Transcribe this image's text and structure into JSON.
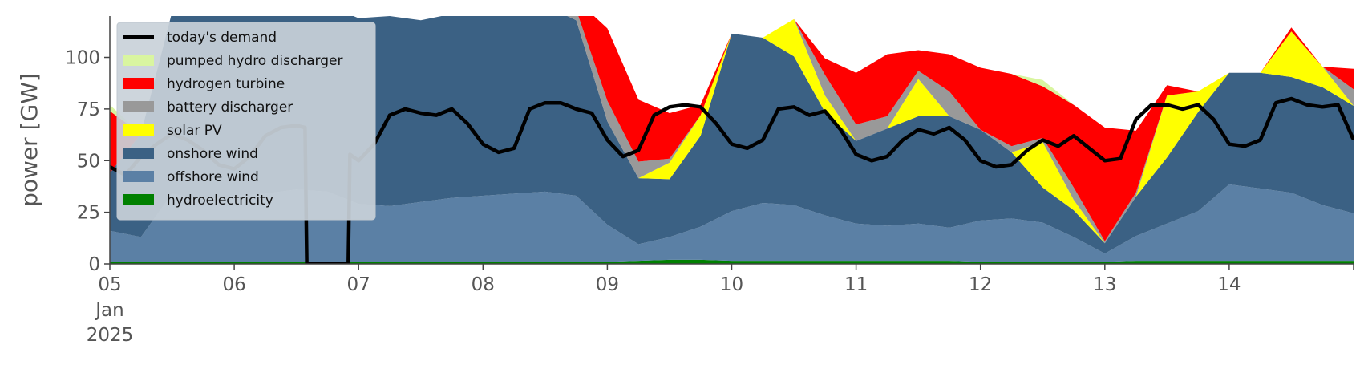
{
  "chart_data": {
    "type": "area",
    "stacked": true,
    "ylabel": "power [GW]",
    "ylim": [
      0,
      120
    ],
    "xlim": [
      "2025-01-05T00:00",
      "2025-01-15T00:00"
    ],
    "x_ticks": [
      {
        "date": "2025-01-05",
        "label": "05",
        "sub1": "Jan",
        "sub2": "2025"
      },
      {
        "date": "2025-01-06",
        "label": "06"
      },
      {
        "date": "2025-01-07",
        "label": "07"
      },
      {
        "date": "2025-01-08",
        "label": "08"
      },
      {
        "date": "2025-01-09",
        "label": "09"
      },
      {
        "date": "2025-01-10",
        "label": "10"
      },
      {
        "date": "2025-01-11",
        "label": "11"
      },
      {
        "date": "2025-01-12",
        "label": "12"
      },
      {
        "date": "2025-01-13",
        "label": "13"
      },
      {
        "date": "2025-01-14",
        "label": "14"
      }
    ],
    "y_ticks": [
      0,
      25,
      50,
      75,
      100
    ],
    "grid": false,
    "legend_position": "top-left",
    "x": [
      "2025-01-05T00:00",
      "2025-01-05T06:00",
      "2025-01-05T12:00",
      "2025-01-05T18:00",
      "2025-01-06T00:00",
      "2025-01-06T06:00",
      "2025-01-06T12:00",
      "2025-01-06T18:00",
      "2025-01-07T00:00",
      "2025-01-07T06:00",
      "2025-01-07T12:00",
      "2025-01-07T18:00",
      "2025-01-08T00:00",
      "2025-01-08T06:00",
      "2025-01-08T12:00",
      "2025-01-08T18:00",
      "2025-01-09T00:00",
      "2025-01-09T06:00",
      "2025-01-09T12:00",
      "2025-01-09T18:00",
      "2025-01-10T00:00",
      "2025-01-10T06:00",
      "2025-01-10T12:00",
      "2025-01-10T18:00",
      "2025-01-11T00:00",
      "2025-01-11T06:00",
      "2025-01-11T12:00",
      "2025-01-11T18:00",
      "2025-01-12T00:00",
      "2025-01-12T06:00",
      "2025-01-12T12:00",
      "2025-01-12T18:00",
      "2025-01-13T00:00",
      "2025-01-13T06:00",
      "2025-01-13T12:00",
      "2025-01-13T18:00",
      "2025-01-14T00:00",
      "2025-01-14T06:00",
      "2025-01-14T12:00",
      "2025-01-14T18:00",
      "2025-01-15T00:00"
    ],
    "series": [
      {
        "name": "hydroelectricity",
        "color": "#008000",
        "values": [
          1,
          1,
          1,
          1,
          1,
          1,
          1,
          1,
          1,
          1,
          1,
          1,
          1,
          1,
          1,
          1,
          1,
          1.5,
          2,
          2,
          1.5,
          1.5,
          1.5,
          1.5,
          1.5,
          1.5,
          1.5,
          1.5,
          1,
          1,
          1,
          1,
          1,
          1.5,
          1.5,
          1.5,
          1.5,
          1.5,
          1.5,
          1.5,
          1.5
        ]
      },
      {
        "name": "offshore wind",
        "color": "#5b80a5",
        "values": [
          15,
          12,
          33,
          30,
          32,
          33,
          35,
          34,
          28,
          27,
          29,
          31,
          32,
          33,
          34,
          32,
          18,
          8,
          11,
          16,
          24,
          28,
          27,
          22,
          18,
          17,
          18,
          16,
          20,
          21,
          19,
          12,
          4,
          12,
          18,
          24,
          37,
          35,
          33,
          27,
          23
        ]
      },
      {
        "name": "onshore wind",
        "color": "#3b6184",
        "values": [
          28,
          50,
          88,
          90,
          90,
          90,
          90,
          90,
          90,
          92,
          88,
          89,
          90,
          90,
          90,
          85,
          50,
          32,
          28,
          44,
          86,
          80,
          72,
          50,
          40,
          47,
          52,
          54,
          44,
          32,
          17,
          13,
          5,
          19,
          32,
          48,
          54,
          56,
          56,
          57,
          52
        ]
      },
      {
        "name": "solar PV",
        "color": "#ffff00",
        "values": [
          0,
          0,
          0,
          0,
          0,
          0,
          0,
          0,
          0,
          0,
          0,
          0,
          0,
          0,
          0,
          0,
          0,
          0,
          8,
          10,
          0,
          0,
          18,
          8,
          0,
          0,
          18,
          0,
          0,
          0,
          22,
          5,
          0,
          0,
          30,
          10,
          0,
          0,
          22,
          10,
          0
        ]
      },
      {
        "name": "battery discharger",
        "color": "#999999",
        "values": [
          0,
          0,
          0,
          0,
          0,
          0,
          0,
          0,
          0,
          0,
          0,
          0,
          0,
          0,
          0,
          5,
          10,
          8,
          2,
          0,
          0,
          0,
          0,
          10,
          8,
          6,
          4,
          12,
          0,
          3,
          2,
          6,
          1,
          2,
          0,
          0,
          0,
          0,
          0,
          0,
          8
        ]
      },
      {
        "name": "hydrogen turbine",
        "color": "#ff0000",
        "values": [
          30,
          0,
          0,
          0,
          0,
          0,
          0,
          0,
          0,
          0,
          0,
          0,
          0,
          0,
          0,
          5,
          35,
          30,
          22,
          5,
          0,
          0,
          0,
          8,
          25,
          30,
          10,
          18,
          30,
          35,
          25,
          40,
          55,
          30,
          5,
          0,
          0,
          0,
          2,
          0,
          10
        ]
      },
      {
        "name": "pumped hydro discharger",
        "color": "#d9f5a0",
        "values": [
          3,
          0,
          0,
          0,
          0,
          0,
          0,
          0,
          0,
          0,
          0,
          0,
          0,
          0,
          0,
          0,
          0,
          0,
          0,
          0,
          0,
          0,
          0,
          0,
          0,
          0,
          0,
          0,
          0,
          0,
          3,
          0,
          0,
          0,
          0,
          0,
          0,
          0,
          0,
          0,
          0
        ]
      }
    ],
    "demand": {
      "name": "today's demand",
      "color": "#000000",
      "x": [
        "2025-01-05T00:00",
        "2025-01-05T03:00",
        "2025-01-05T06:00",
        "2025-01-05T09:00",
        "2025-01-05T12:00",
        "2025-01-05T15:00",
        "2025-01-05T18:00",
        "2025-01-05T21:00",
        "2025-01-06T00:00",
        "2025-01-06T03:00",
        "2025-01-06T06:00",
        "2025-01-06T09:00",
        "2025-01-06T12:00",
        "2025-01-06T13:40",
        "2025-01-06T14:00",
        "2025-01-06T18:00",
        "2025-01-06T22:00",
        "2025-01-06T22:20",
        "2025-01-07T00:00",
        "2025-01-07T03:00",
        "2025-01-07T06:00",
        "2025-01-07T09:00",
        "2025-01-07T12:00",
        "2025-01-07T15:00",
        "2025-01-07T18:00",
        "2025-01-07T21:00",
        "2025-01-08T00:00",
        "2025-01-08T03:00",
        "2025-01-08T06:00",
        "2025-01-08T09:00",
        "2025-01-08T12:00",
        "2025-01-08T15:00",
        "2025-01-08T18:00",
        "2025-01-08T21:00",
        "2025-01-09T00:00",
        "2025-01-09T03:00",
        "2025-01-09T06:00",
        "2025-01-09T09:00",
        "2025-01-09T12:00",
        "2025-01-09T15:00",
        "2025-01-09T18:00",
        "2025-01-09T21:00",
        "2025-01-10T00:00",
        "2025-01-10T03:00",
        "2025-01-10T06:00",
        "2025-01-10T09:00",
        "2025-01-10T12:00",
        "2025-01-10T15:00",
        "2025-01-10T18:00",
        "2025-01-10T21:00",
        "2025-01-11T00:00",
        "2025-01-11T03:00",
        "2025-01-11T06:00",
        "2025-01-11T09:00",
        "2025-01-11T12:00",
        "2025-01-11T15:00",
        "2025-01-11T18:00",
        "2025-01-11T21:00",
        "2025-01-12T00:00",
        "2025-01-12T03:00",
        "2025-01-12T06:00",
        "2025-01-12T09:00",
        "2025-01-12T12:00",
        "2025-01-12T15:00",
        "2025-01-12T18:00",
        "2025-01-12T21:00",
        "2025-01-13T00:00",
        "2025-01-13T03:00",
        "2025-01-13T06:00",
        "2025-01-13T09:00",
        "2025-01-13T12:00",
        "2025-01-13T15:00",
        "2025-01-13T18:00",
        "2025-01-13T21:00",
        "2025-01-14T00:00",
        "2025-01-14T03:00",
        "2025-01-14T06:00",
        "2025-01-14T09:00",
        "2025-01-14T12:00",
        "2025-01-14T15:00",
        "2025-01-14T18:00",
        "2025-01-14T21:00",
        "2025-01-14T23:50"
      ],
      "values": [
        47,
        43,
        52,
        58,
        63,
        60,
        55,
        48,
        46,
        52,
        62,
        66,
        67,
        66,
        0,
        0,
        0,
        53,
        50,
        58,
        72,
        75,
        73,
        72,
        75,
        68,
        58,
        54,
        56,
        75,
        78,
        78,
        75,
        73,
        60,
        52,
        55,
        72,
        76,
        77,
        76,
        68,
        58,
        56,
        60,
        75,
        76,
        72,
        74,
        65,
        53,
        50,
        52,
        60,
        65,
        63,
        66,
        60,
        50,
        47,
        48,
        55,
        60,
        57,
        62,
        56,
        50,
        51,
        70,
        77,
        77,
        75,
        77,
        70,
        58,
        57,
        60,
        78,
        80,
        77,
        76,
        77,
        61
      ]
    }
  }
}
